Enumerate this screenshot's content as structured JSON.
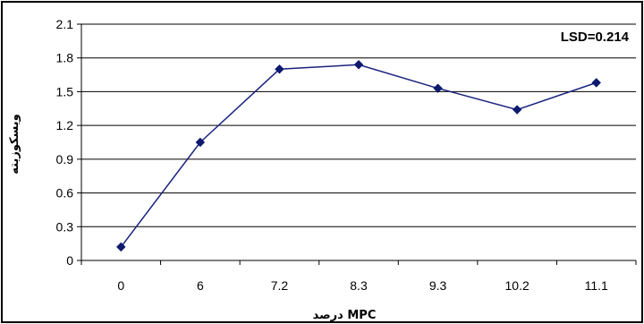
{
  "chart_data": {
    "type": "line",
    "categories": [
      "0",
      "6",
      "7.2",
      "8.3",
      "9.3",
      "10.2",
      "11.1"
    ],
    "series": [
      {
        "values": [
          0.12,
          1.05,
          1.7,
          1.74,
          1.53,
          1.34,
          1.58
        ]
      }
    ],
    "yticks": [
      "0",
      "0.3",
      "0.6",
      "0.9",
      "1.2",
      "1.5",
      "1.8",
      "2.1"
    ],
    "ylim": [
      0,
      2.1
    ],
    "xlabel": "درصد MPC",
    "ylabel": "ویسکوزیته",
    "annotation": "LSD=0.214",
    "grid": "horizontal",
    "colors": {
      "line": "#1a237e",
      "marker": "#0d1a6e",
      "grid": "#000000"
    }
  }
}
